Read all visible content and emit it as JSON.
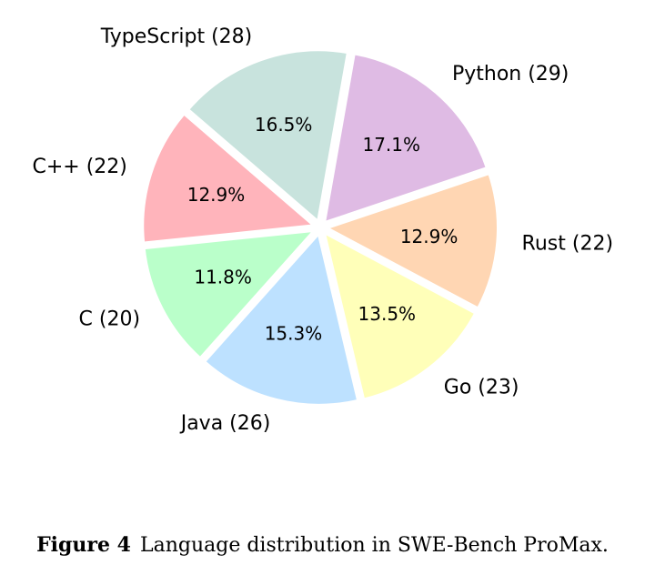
{
  "chart_data": {
    "type": "pie",
    "title": "",
    "categories": [
      "Python",
      "Rust",
      "Go",
      "Java",
      "C",
      "C++",
      "TypeScript"
    ],
    "values": [
      29,
      22,
      23,
      26,
      20,
      22,
      28
    ],
    "colors": [
      "#dfbbe4",
      "#ffd6b3",
      "#ffffb9",
      "#bde1ff",
      "#baffca",
      "#ffb4bb",
      "#c8e3dd"
    ],
    "label_texts": [
      "Python (29)",
      "Rust (22)",
      "Go (23)",
      "Java (26)",
      "C (20)",
      "C++ (22)",
      "TypeScript (28)"
    ],
    "percent_texts": [
      "17.1%",
      "12.9%",
      "13.5%",
      "15.3%",
      "11.8%",
      "12.9%",
      "16.5%"
    ],
    "start_angle_deg": 80,
    "direction": "clockwise",
    "wedge_edge_color": "#ffffff"
  },
  "caption": {
    "label": "Figure 4",
    "text": "Language distribution in SWE-Bench ProMax."
  }
}
